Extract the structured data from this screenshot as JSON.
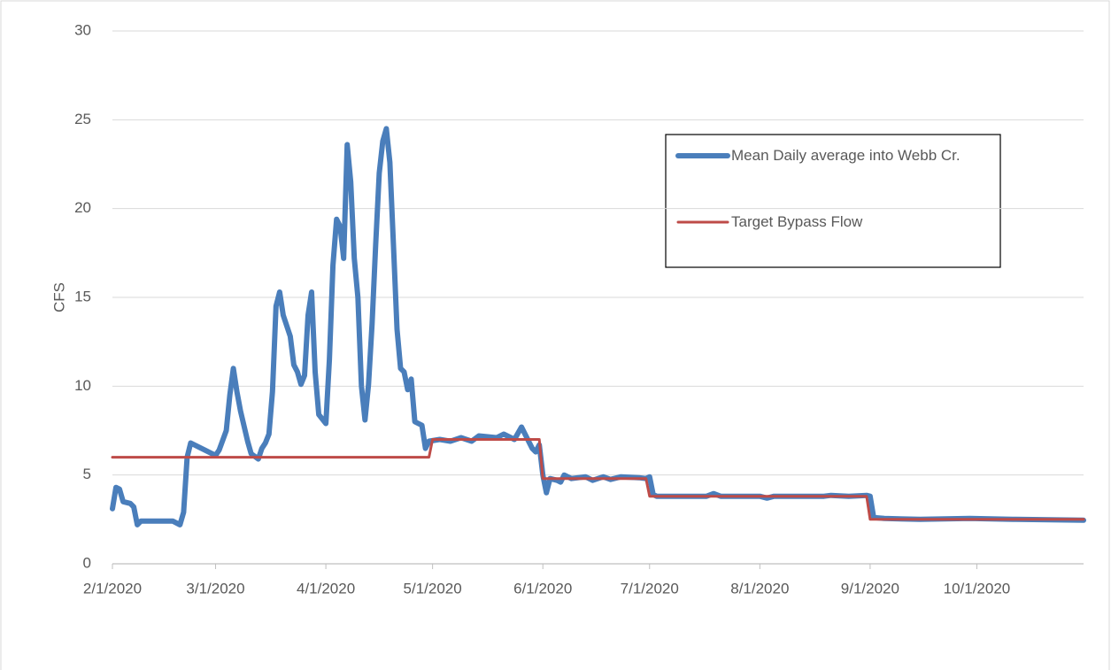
{
  "chart_data": {
    "type": "line",
    "y_label": "CFS",
    "xlim": [
      "2/1/2020",
      "10/31/2020"
    ],
    "xticks": [
      "2/1/2020",
      "3/1/2020",
      "4/1/2020",
      "5/1/2020",
      "6/1/2020",
      "7/1/2020",
      "8/1/2020",
      "9/1/2020",
      "10/1/2020"
    ],
    "ylim": [
      0,
      30
    ],
    "yticks": [
      0,
      5,
      10,
      15,
      20,
      25,
      30
    ],
    "grid": true,
    "legend": "upper right",
    "series": [
      {
        "name": "Mean Daily average into Webb Cr.",
        "color": "#4a7ebb",
        "x": [
          "2/1/2020",
          "2/2/2020",
          "2/3/2020",
          "2/4/2020",
          "2/6/2020",
          "2/7/2020",
          "2/8/2020",
          "2/9/2020",
          "2/18/2020",
          "2/20/2020",
          "2/21/2020",
          "2/22/2020",
          "2/23/2020",
          "2/27/2020",
          "3/1/2020",
          "3/2/2020",
          "3/4/2020",
          "3/5/2020",
          "3/6/2020",
          "3/7/2020",
          "3/8/2020",
          "3/10/2020",
          "3/11/2020",
          "3/13/2020",
          "3/14/2020",
          "3/15/2020",
          "3/16/2020",
          "3/17/2020",
          "3/18/2020",
          "3/19/2020",
          "3/20/2020",
          "3/22/2020",
          "3/23/2020",
          "3/24/2020",
          "3/25/2020",
          "3/26/2020",
          "3/27/2020",
          "3/28/2020",
          "3/29/2020",
          "3/30/2020",
          "4/1/2020",
          "4/2/2020",
          "4/3/2020",
          "4/4/2020",
          "4/5/2020",
          "4/6/2020",
          "4/7/2020",
          "4/8/2020",
          "4/9/2020",
          "4/10/2020",
          "4/11/2020",
          "4/12/2020",
          "4/13/2020",
          "4/14/2020",
          "4/15/2020",
          "4/16/2020",
          "4/17/2020",
          "4/18/2020",
          "4/19/2020",
          "4/20/2020",
          "4/21/2020",
          "4/22/2020",
          "4/23/2020",
          "4/24/2020",
          "4/25/2020",
          "4/26/2020",
          "4/28/2020",
          "4/29/2020",
          "4/30/2020",
          "5/3/2020",
          "5/6/2020",
          "5/9/2020",
          "5/12/2020",
          "5/14/2020",
          "5/19/2020",
          "5/21/2020",
          "5/24/2020",
          "5/26/2020",
          "5/28/2020",
          "5/29/2020",
          "5/30/2020",
          "5/31/2020",
          "6/1/2020",
          "6/2/2020",
          "6/3/2020",
          "6/5/2020",
          "6/6/2020",
          "6/7/2020",
          "6/9/2020",
          "6/13/2020",
          "6/15/2020",
          "6/18/2020",
          "6/20/2020",
          "6/23/2020",
          "6/28/2020",
          "6/30/2020",
          "7/1/2020",
          "7/2/2020",
          "7/3/2020",
          "7/12/2020",
          "7/17/2020",
          "7/19/2020",
          "7/21/2020",
          "7/27/2020",
          "8/1/2020",
          "8/3/2020",
          "8/5/2020",
          "8/11/2020",
          "8/19/2020",
          "8/21/2020",
          "8/26/2020",
          "8/31/2020",
          "9/1/2020",
          "9/2/2020",
          "9/5/2020",
          "9/15/2020",
          "9/29/2020",
          "10/12/2020",
          "10/31/2020"
        ],
        "values": [
          3.1,
          4.3,
          4.2,
          3.5,
          3.4,
          3.2,
          2.2,
          2.4,
          2.4,
          2.2,
          2.9,
          6.0,
          6.8,
          6.4,
          6.1,
          6.4,
          7.5,
          9.5,
          11.0,
          9.7,
          8.6,
          6.9,
          6.2,
          5.9,
          6.5,
          6.8,
          7.3,
          9.7,
          14.5,
          15.3,
          14.0,
          12.8,
          11.2,
          10.8,
          10.1,
          10.6,
          14.0,
          15.3,
          10.8,
          8.4,
          7.9,
          11.5,
          16.8,
          19.4,
          19.0,
          17.2,
          23.6,
          21.5,
          17.2,
          15.0,
          10.0,
          8.1,
          10.1,
          13.5,
          18.0,
          22.0,
          23.8,
          24.5,
          22.6,
          18.0,
          13.2,
          11.0,
          10.8,
          9.8,
          10.4,
          8.0,
          7.8,
          6.5,
          6.9,
          7.0,
          6.9,
          7.1,
          6.9,
          7.2,
          7.1,
          7.3,
          7.0,
          7.7,
          6.9,
          6.5,
          6.3,
          6.7,
          5.0,
          4.0,
          4.8,
          4.7,
          4.6,
          5.0,
          4.8,
          4.9,
          4.7,
          4.9,
          4.75,
          4.9,
          4.85,
          4.8,
          4.9,
          3.9,
          3.8,
          3.8,
          3.8,
          3.95,
          3.8,
          3.8,
          3.8,
          3.7,
          3.8,
          3.8,
          3.8,
          3.85,
          3.8,
          3.85,
          3.8,
          2.6,
          2.55,
          2.5,
          2.55,
          2.5,
          2.45
        ]
      },
      {
        "name": "Target Bypass Flow",
        "color": "#be4b48",
        "x": [
          "2/1/2020",
          "4/30/2020",
          "5/1/2020",
          "5/31/2020",
          "6/1/2020",
          "6/30/2020",
          "7/1/2020",
          "8/31/2020",
          "9/1/2020",
          "10/31/2020"
        ],
        "values": [
          6,
          6,
          7,
          7,
          4.8,
          4.8,
          3.8,
          3.8,
          2.5,
          2.5
        ]
      }
    ]
  }
}
